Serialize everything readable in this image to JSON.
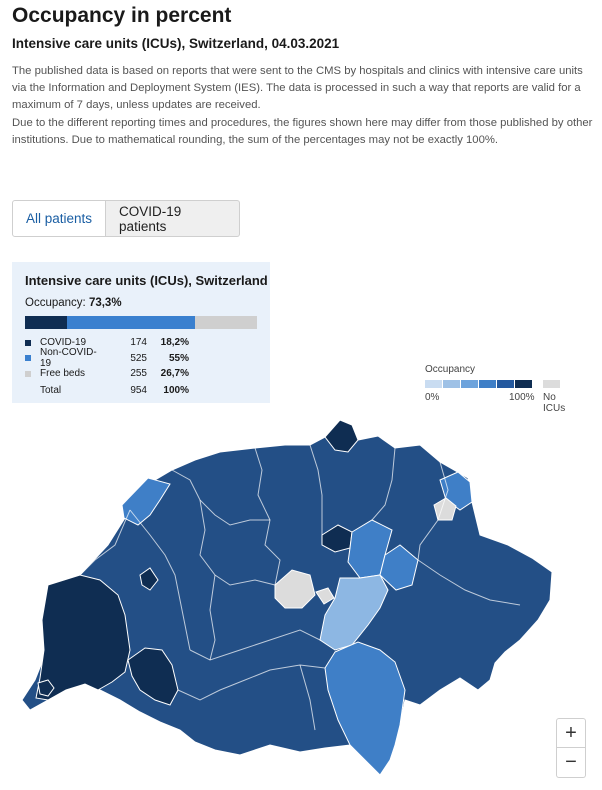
{
  "header": {
    "title": "Occupancy in percent",
    "subtitle": "Intensive care units (ICUs), Switzerland, 04.03.2021",
    "desc1": "The published data is based on reports that were sent to the CMS by hospitals and clinics with intensive care units via the Information and Deployment System (IES). The data is processed in such a way that reports are valid for a maximum of 7 days, unless updates are received.",
    "desc2": "Due to the different reporting times and procedures, the figures shown here may differ from those published by other institutions. Due to mathematical rounding, the sum of the percentages may not be exactly 100%."
  },
  "tabs": [
    {
      "label": "All patients",
      "active": true
    },
    {
      "label": "COVID-19 patients",
      "active": false
    }
  ],
  "card": {
    "title": "Intensive care units (ICUs), Switzerland",
    "occupancy_label": "Occupancy:",
    "occupancy_value": "73,3%",
    "rows": [
      {
        "name": "COVID-19",
        "count": "174",
        "pct": "18,2%",
        "color": "#0f2d52",
        "share": 0.182
      },
      {
        "name": "Non-COVID-19",
        "count": "525",
        "pct": "55%",
        "color": "#3a80cf",
        "share": 0.55
      },
      {
        "name": "Free beds",
        "count": "255",
        "pct": "26,7%",
        "color": "#cfcfcf",
        "share": 0.267
      }
    ],
    "total": {
      "name": "Total",
      "count": "954",
      "pct": "100%"
    }
  },
  "scale": {
    "title": "Occupancy",
    "min_label": "0%",
    "max_label": "100%",
    "none_label": "No ICUs",
    "colors": [
      "#c9dcf1",
      "#9ec1e6",
      "#6da3dc",
      "#3f7fc7",
      "#24599f",
      "#0f2d52"
    ],
    "none_color": "#dcdcdc"
  },
  "map_colors": {
    "base": "#234f86",
    "dark": "#0f2d52",
    "medium": "#3f7fc7",
    "light": "#8db7e3",
    "none": "#dcdcdc",
    "border": "#ffffff"
  },
  "zoom": {
    "in": "+",
    "out": "−"
  }
}
